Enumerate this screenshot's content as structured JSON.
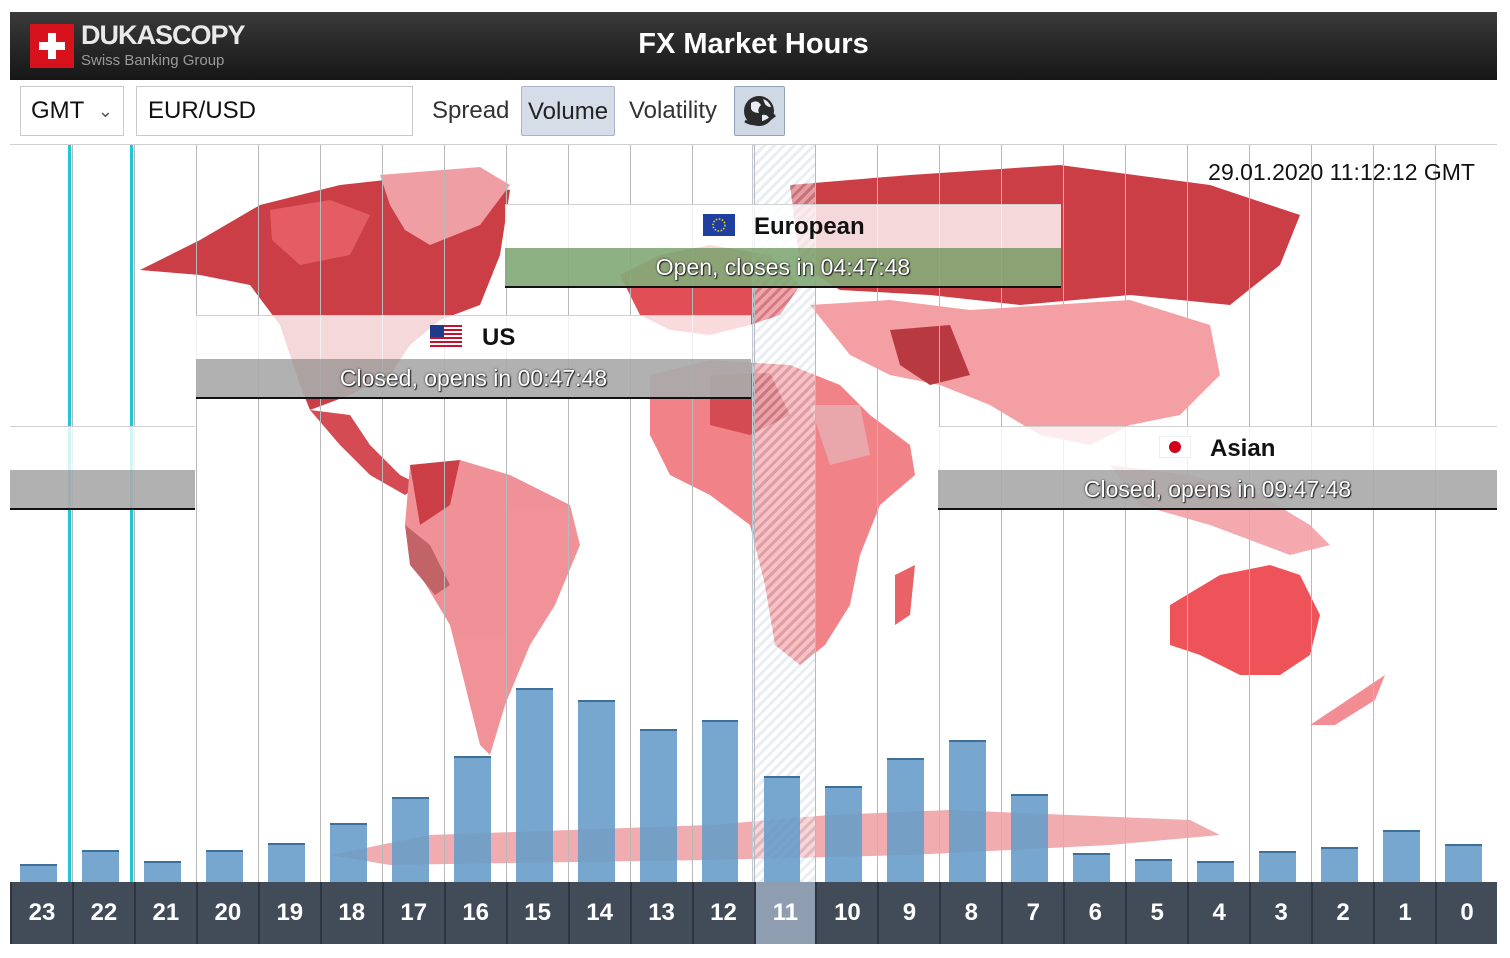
{
  "header": {
    "brand": "DUKASCOPY",
    "brand_sub": "Swiss Banking Group",
    "title": "FX Market Hours"
  },
  "toolbar": {
    "timezone": "GMT",
    "pair": "EUR/USD",
    "spread_label": "Spread",
    "volume_label": "Volume",
    "volatility_label": "Volatility",
    "active_mode": "Volume",
    "globe_icon": "globe-icon"
  },
  "datetime": "29.01.2020 11:12:12 GMT",
  "sessions": {
    "european": {
      "name": "European",
      "status": "Open, closes in 04:47:48",
      "flag_icon": "eu-flag-icon"
    },
    "us": {
      "name": "US",
      "status": "Closed, opens in 00:47:48",
      "flag_icon": "us-flag-icon"
    },
    "asian": {
      "name": "Asian",
      "status": "Closed, opens in 09:47:48",
      "flag_icon": "japan-flag-icon"
    }
  },
  "current_hour": "11",
  "colors": {
    "header_bg": "#1c1c1c",
    "bar": "#6a9dc9",
    "open": "#84aa78",
    "closed": "#aaaaaa",
    "axis_bg": "#424b58",
    "map_red": "#d8363f"
  },
  "chart_data": {
    "type": "bar",
    "categories": [
      "23",
      "22",
      "21",
      "20",
      "19",
      "18",
      "17",
      "16",
      "15",
      "14",
      "13",
      "12",
      "11",
      "10",
      "9",
      "8",
      "7",
      "6",
      "5",
      "4",
      "3",
      "2",
      "1",
      "0"
    ],
    "values": [
      18,
      32,
      21,
      32,
      39,
      59,
      85,
      126,
      194,
      182,
      153,
      162,
      106,
      96,
      124,
      142,
      88,
      29,
      23,
      21,
      31,
      35,
      52,
      38
    ],
    "xlabel": "",
    "ylabel": ""
  }
}
